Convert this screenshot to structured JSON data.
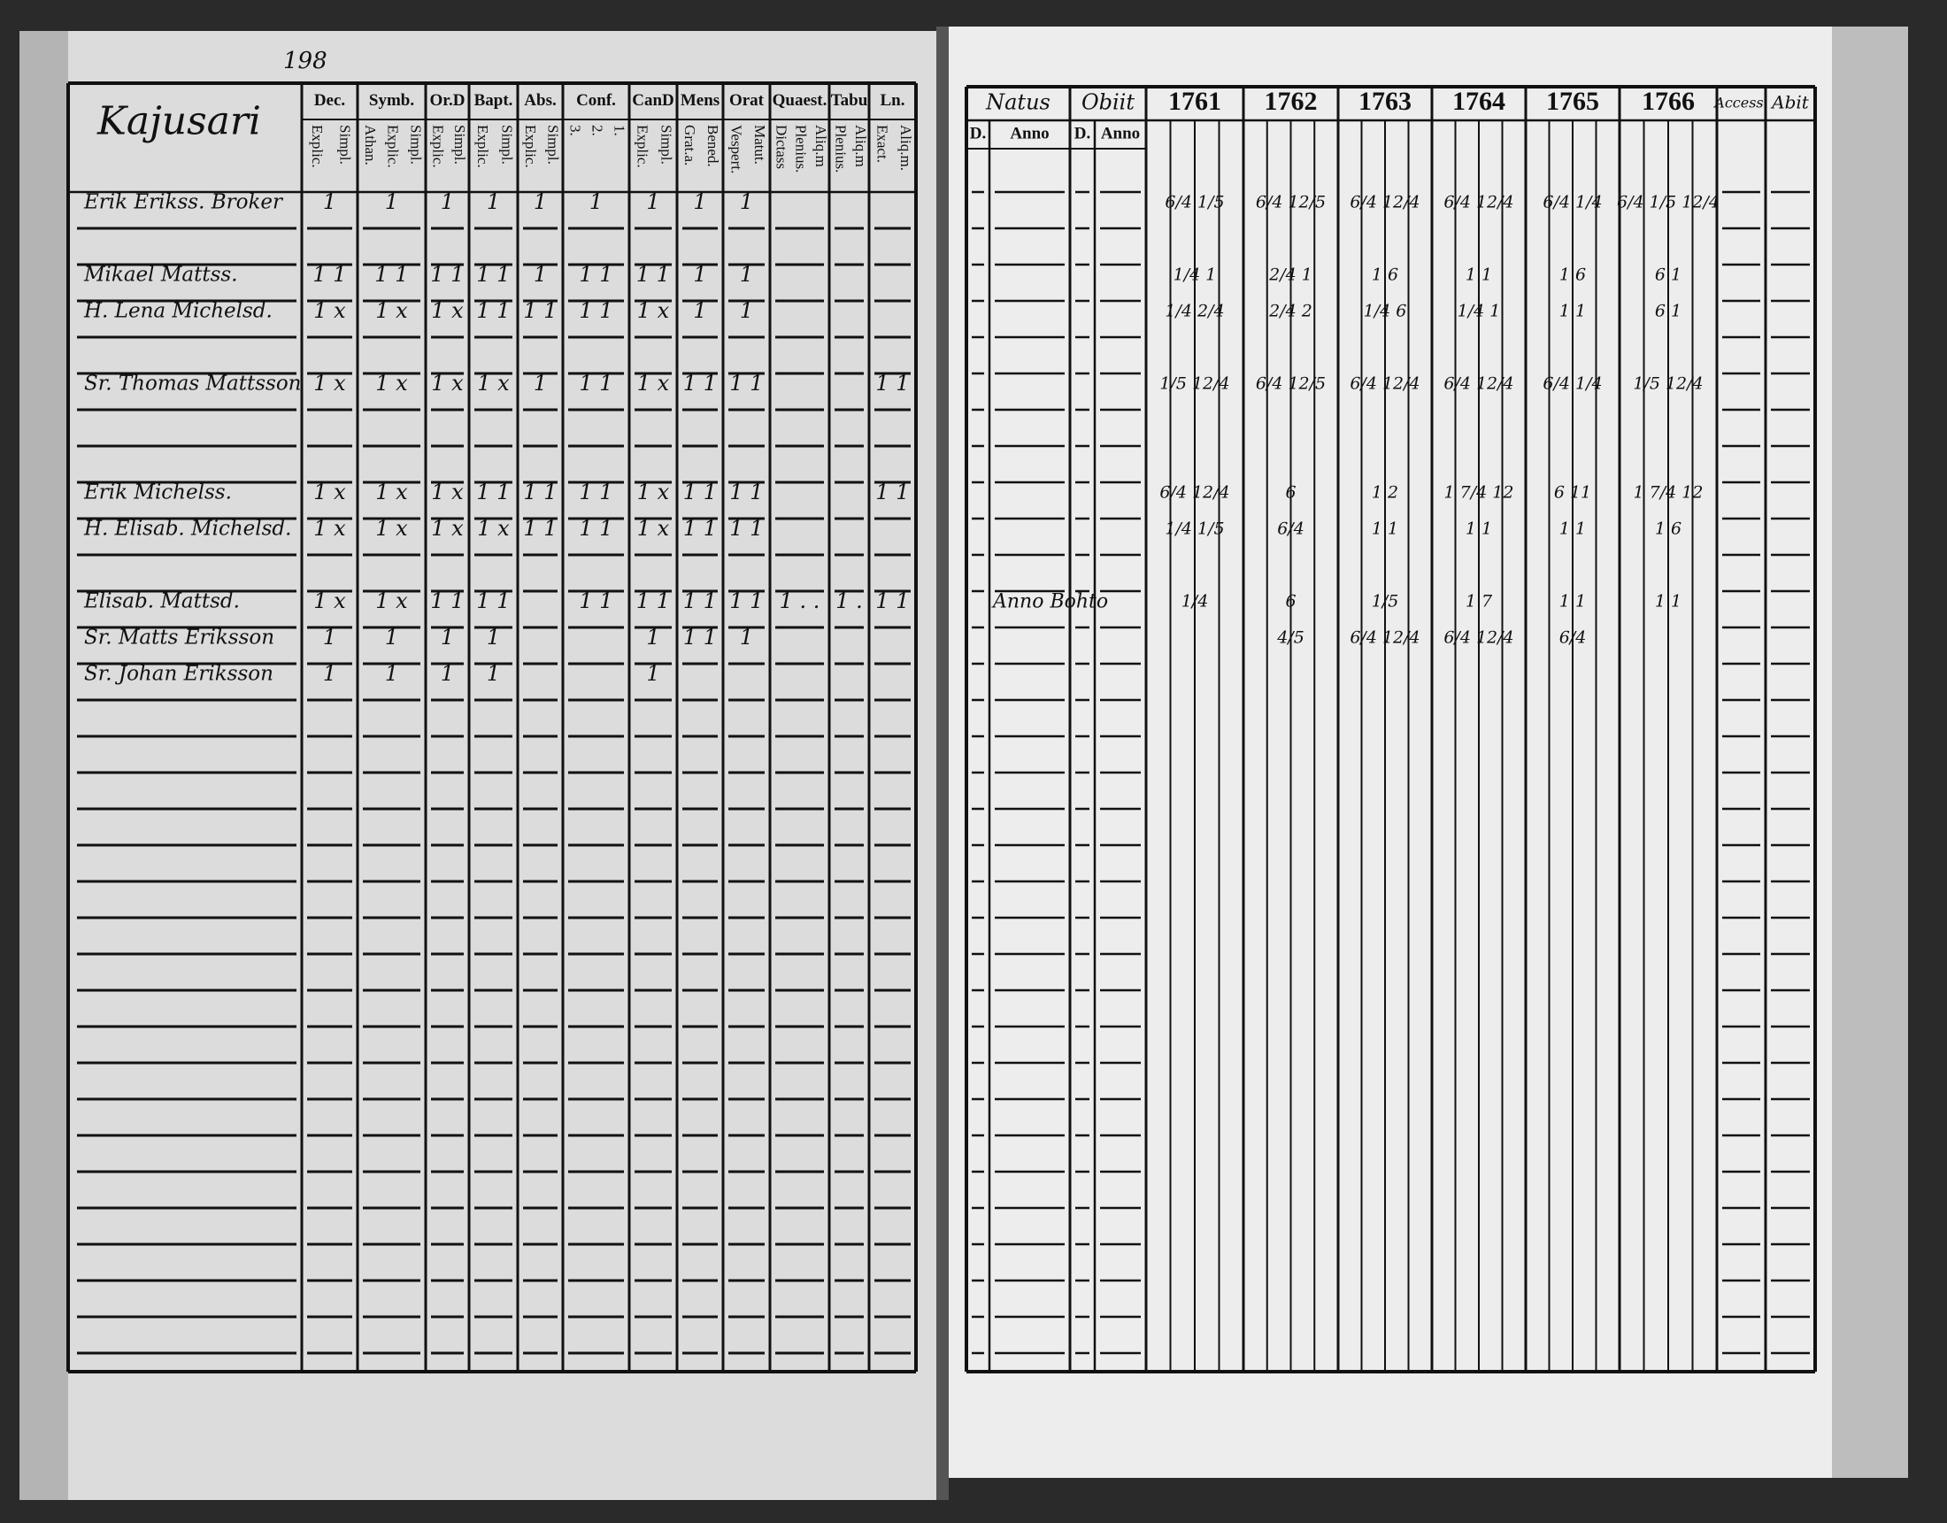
{
  "left_page": {
    "page_number": "198",
    "title": "Kajusari",
    "columns": [
      {
        "title": "Dec.",
        "sub": [
          "Explic.",
          "Simpl."
        ]
      },
      {
        "title": "Symb.",
        "sub": [
          "Athan.",
          "Explic.",
          "Simpl."
        ]
      },
      {
        "title": "Or.D",
        "sub": [
          "Explic.",
          "Simpl."
        ]
      },
      {
        "title": "Bapt.",
        "sub": [
          "Explic.",
          "Simpl."
        ]
      },
      {
        "title": "Abs.",
        "sub": [
          "Explic.",
          "Simpl."
        ]
      },
      {
        "title": "Conf.",
        "sub": [
          "3.",
          "2.",
          "1."
        ]
      },
      {
        "title": "CanD",
        "sub": [
          "Explic.",
          "Simpl."
        ]
      },
      {
        "title": "Mens",
        "sub": [
          "Grat.a.",
          "Bened."
        ]
      },
      {
        "title": "Orat",
        "sub": [
          "Vespert.",
          "Matut."
        ]
      },
      {
        "title": "Quaest.",
        "sub": [
          "Dictass",
          "Plenius.",
          "Aliq.m"
        ]
      },
      {
        "title": "Tabu",
        "sub": [
          "Plenius.",
          "Aliq.m"
        ]
      },
      {
        "title": "Ln.",
        "sub": [
          "Exact.",
          "Aliq.m."
        ]
      }
    ]
  },
  "right_page": {
    "natus": "Natus",
    "obiit": "Obiit",
    "day": "D.",
    "year": "Anno",
    "years": [
      "1761",
      "1762",
      "1763",
      "1764",
      "1765",
      "1766"
    ],
    "accessit": "Access.",
    "abit": "Abit"
  },
  "register": [
    {
      "name": "Erik Erikss. Broker",
      "marks": [
        "1",
        "1",
        "1",
        "1",
        "1",
        "1",
        "1",
        "1",
        "1",
        null,
        null,
        null
      ],
      "years": [
        "6/4 1/5",
        "6/4 12/5",
        "6/4 12/4",
        "6/4 12/4",
        "6/4 1/4",
        "6/4 1/5 12/4"
      ]
    },
    {
      "name": "Mikael Mattss.",
      "marks": [
        "1 1",
        "1 1",
        "1 1",
        "1 1",
        "1",
        "1 1",
        "1 1",
        "1",
        "1",
        null,
        null,
        null
      ],
      "years": [
        "1/4 1",
        "2/4 1",
        "1 6",
        "1 1",
        "1 6",
        "6 1"
      ]
    },
    {
      "name": "H. Lena Michelsd.",
      "marks": [
        "1 x",
        "1 x",
        "1 x",
        "1 1",
        "1 1",
        "1 1",
        "1 x",
        "1",
        "1",
        null,
        null,
        null
      ],
      "years": [
        "1/4 2/4",
        "2/4 2",
        "1/4 6",
        "1/4 1",
        "1 1",
        "6 1"
      ]
    },
    {
      "name": "Sr. Thomas Mattsson",
      "marks": [
        "1 x",
        "1 x",
        "1 x",
        "1 x",
        "1",
        "1 1",
        "1 x",
        "1 1",
        "1 1",
        null,
        null,
        "1 1"
      ],
      "years": [
        "1/5 12/4",
        "6/4 12/5",
        "6/4 12/4",
        "6/4 12/4",
        "6/4 1/4",
        "1/5 12/4"
      ]
    },
    {
      "name": "Erik Michelss.",
      "marks": [
        "1 x",
        "1 x",
        "1 x",
        "1 1",
        "1 1",
        "1 1",
        "1 x",
        "1 1",
        "1 1",
        null,
        null,
        "1 1"
      ],
      "years": [
        "6/4 12/4",
        "6",
        "1 2",
        "1 7/4 12",
        "6 11",
        "1 7/4 12"
      ]
    },
    {
      "name": "H. Elisab. Michelsd.",
      "marks": [
        "1 x",
        "1 x",
        "1 x",
        "1 x",
        "1 1",
        "1 1",
        "1 x",
        "1 1",
        "1 1",
        null,
        null,
        null
      ],
      "years": [
        "1/4 1/5",
        "6/4",
        "1 1",
        "1 1",
        "1 1",
        "1 6"
      ]
    },
    {
      "name": "Elisab. Mattsd.",
      "natus": "Anno Bohto",
      "marks": [
        "1 x",
        "1 x",
        "1 1",
        "1 1",
        null,
        "1 1",
        "1 1",
        "1 1",
        "1 1",
        "1 . .",
        "1 .",
        "1 1"
      ],
      "years": [
        "1/4",
        "6",
        "1/5",
        "1 7",
        "1 1",
        "1 1"
      ]
    },
    {
      "name": "Sr. Matts Eriksson",
      "marks": [
        "1",
        "1",
        "1",
        "1",
        null,
        null,
        "1",
        "1 1",
        "1",
        null,
        null,
        null
      ],
      "years": [
        null,
        "4/5",
        "6/4 12/4",
        "6/4 12/4",
        "6/4",
        null
      ]
    },
    {
      "name": "Sr. Johan Eriksson",
      "marks": [
        "1",
        "1",
        "1",
        "1",
        null,
        null,
        "1",
        null,
        null,
        null,
        null,
        null
      ],
      "years": [
        null,
        null,
        null,
        null,
        null,
        null
      ]
    }
  ]
}
